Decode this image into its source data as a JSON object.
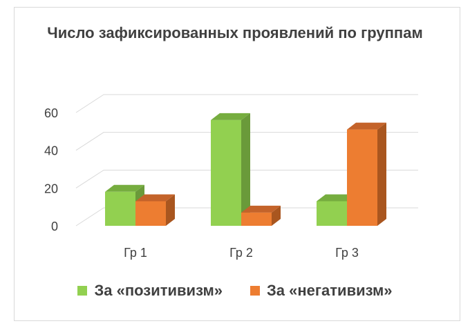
{
  "chart_data": {
    "type": "bar",
    "title": "Число зафиксированных проявлений по группам",
    "categories": [
      "Гр 1",
      "Гр 2",
      "Гр 3"
    ],
    "series": [
      {
        "name": "За «позитивизм»",
        "values": [
          18,
          56,
          13
        ],
        "color": "#92d050",
        "side": "#6a9a3a",
        "top": "#76ad3f"
      },
      {
        "name": "За «негативизм»",
        "values": [
          13,
          7,
          51
        ],
        "color": "#ed7d31",
        "side": "#a9561f",
        "top": "#c4632a"
      }
    ],
    "yticks": [
      0,
      20,
      40,
      60
    ],
    "ylim": [
      0,
      60
    ],
    "grid": true,
    "legend": "bottom",
    "xlabel": "",
    "ylabel": ""
  }
}
